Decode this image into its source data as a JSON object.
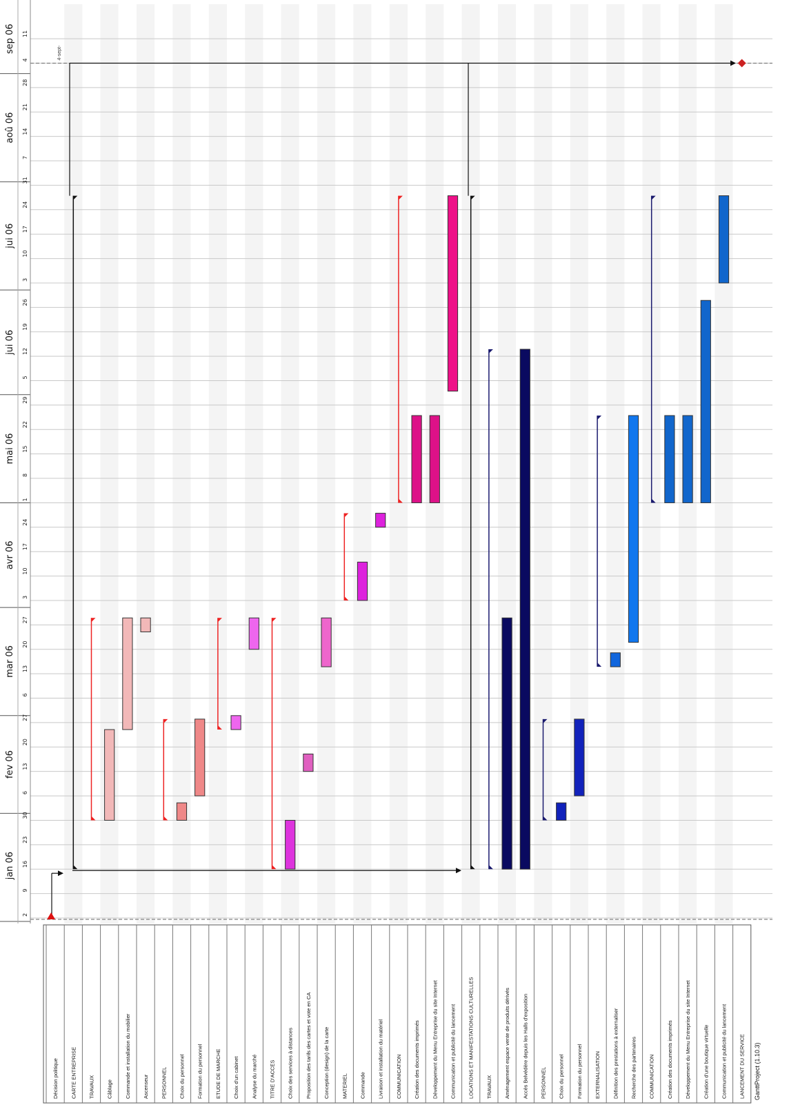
{
  "app": {
    "footer": "GanttProject (1.10.3)"
  },
  "chart_data": {
    "type": "gantt",
    "timeline": {
      "start": "2006-01-02",
      "end": "2006-09-13",
      "months": [
        {
          "label": "jan 06",
          "start": "2006-01-01"
        },
        {
          "label": "fev 06",
          "start": "2006-02-01"
        },
        {
          "label": "mar 06",
          "start": "2006-03-01"
        },
        {
          "label": "avr 06",
          "start": "2006-04-01"
        },
        {
          "label": "mai 06",
          "start": "2006-05-01"
        },
        {
          "label": "jui 06",
          "start": "2006-06-01"
        },
        {
          "label": "jui 06",
          "start": "2006-07-01"
        },
        {
          "label": "aoû 06",
          "start": "2006-08-01"
        },
        {
          "label": "sep 06",
          "start": "2006-09-01"
        }
      ],
      "weeks": [
        {
          "label": "2",
          "date": "2006-01-02"
        },
        {
          "label": "9",
          "date": "2006-01-09"
        },
        {
          "label": "16",
          "date": "2006-01-16"
        },
        {
          "label": "23",
          "date": "2006-01-23"
        },
        {
          "label": "30",
          "date": "2006-01-30"
        },
        {
          "label": "6",
          "date": "2006-02-06"
        },
        {
          "label": "13",
          "date": "2006-02-13"
        },
        {
          "label": "20",
          "date": "2006-02-20"
        },
        {
          "label": "27",
          "date": "2006-02-27"
        },
        {
          "label": "6",
          "date": "2006-03-06"
        },
        {
          "label": "13",
          "date": "2006-03-13"
        },
        {
          "label": "20",
          "date": "2006-03-20"
        },
        {
          "label": "27",
          "date": "2006-03-27"
        },
        {
          "label": "3",
          "date": "2006-04-03"
        },
        {
          "label": "10",
          "date": "2006-04-10"
        },
        {
          "label": "17",
          "date": "2006-04-17"
        },
        {
          "label": "24",
          "date": "2006-04-24"
        },
        {
          "label": "1",
          "date": "2006-05-01"
        },
        {
          "label": "8",
          "date": "2006-05-08"
        },
        {
          "label": "15",
          "date": "2006-05-15"
        },
        {
          "label": "22",
          "date": "2006-05-22"
        },
        {
          "label": "29",
          "date": "2006-05-29"
        },
        {
          "label": "5",
          "date": "2006-06-05"
        },
        {
          "label": "12",
          "date": "2006-06-12"
        },
        {
          "label": "19",
          "date": "2006-06-19"
        },
        {
          "label": "26",
          "date": "2006-06-26"
        },
        {
          "label": "3",
          "date": "2006-07-03"
        },
        {
          "label": "10",
          "date": "2006-07-10"
        },
        {
          "label": "17",
          "date": "2006-07-17"
        },
        {
          "label": "24",
          "date": "2006-07-24"
        },
        {
          "label": "31",
          "date": "2006-07-31"
        },
        {
          "label": "7",
          "date": "2006-08-07"
        },
        {
          "label": "14",
          "date": "2006-08-14"
        },
        {
          "label": "21",
          "date": "2006-08-21"
        },
        {
          "label": "28",
          "date": "2006-08-28"
        },
        {
          "label": "4",
          "date": "2006-09-04"
        },
        {
          "label": "11",
          "date": "2006-09-11"
        }
      ]
    },
    "today_label": "4-sept-",
    "tasks": [
      {
        "name": "Décision politique",
        "kind": "milestone",
        "start": "2006-01-02",
        "color": "#dd1111"
      },
      {
        "name": "CARTE ENTREPRISE",
        "kind": "summary",
        "start": "2006-01-16",
        "end": "2006-07-28",
        "color": "#111111"
      },
      {
        "name": "TRAVAUX",
        "kind": "summary",
        "start": "2006-01-30",
        "end": "2006-03-29",
        "color": "#ee2222"
      },
      {
        "name": "Câblage",
        "kind": "bar",
        "start": "2006-01-30",
        "end": "2006-02-25",
        "color": "#f2b8b8"
      },
      {
        "name": "Commande et installation du mobilier",
        "kind": "bar",
        "start": "2006-02-25",
        "end": "2006-03-29",
        "color": "#f2b8b8"
      },
      {
        "name": "Ascenseur",
        "kind": "bar",
        "start": "2006-03-25",
        "end": "2006-03-29",
        "color": "#f2b8b8"
      },
      {
        "name": "PERSONNEL",
        "kind": "summary",
        "start": "2006-01-30",
        "end": "2006-02-28",
        "color": "#ee2222"
      },
      {
        "name": "Choix du personnel",
        "kind": "bar",
        "start": "2006-01-30",
        "end": "2006-02-04",
        "color": "#ef8888"
      },
      {
        "name": "Formation du personnel",
        "kind": "bar",
        "start": "2006-02-06",
        "end": "2006-02-28",
        "color": "#ef8888"
      },
      {
        "name": "ETUDE DE MARCHE",
        "kind": "summary",
        "start": "2006-02-25",
        "end": "2006-03-29",
        "color": "#ee2222"
      },
      {
        "name": "Choix d'un cabinet",
        "kind": "bar",
        "start": "2006-02-25",
        "end": "2006-03-01",
        "color": "#ee66ee"
      },
      {
        "name": "Analyse du marché",
        "kind": "bar",
        "start": "2006-03-20",
        "end": "2006-03-29",
        "color": "#ee66ee"
      },
      {
        "name": "TITRE D'ACCES",
        "kind": "summary",
        "start": "2006-01-16",
        "end": "2006-03-29",
        "color": "#ee2222"
      },
      {
        "name": "Choix des services à distances",
        "kind": "bar",
        "start": "2006-01-16",
        "end": "2006-01-30",
        "color": "#dd33dd"
      },
      {
        "name": "Proposition des tarifs des cartes et vote en CA",
        "kind": "bar",
        "start": "2006-02-13",
        "end": "2006-02-18",
        "color": "#e060c0"
      },
      {
        "name": "Conception (design) de la carte",
        "kind": "bar",
        "start": "2006-03-15",
        "end": "2006-03-29",
        "color": "#ee66cc"
      },
      {
        "name": "MATERIEL",
        "kind": "summary",
        "start": "2006-04-03",
        "end": "2006-04-28",
        "color": "#ee2222"
      },
      {
        "name": "Commande",
        "kind": "bar",
        "start": "2006-04-03",
        "end": "2006-04-14",
        "color": "#dd22dd"
      },
      {
        "name": "Livraison et installation du matériel",
        "kind": "bar",
        "start": "2006-04-24",
        "end": "2006-04-28",
        "color": "#dd22dd"
      },
      {
        "name": "COMMUNICATION",
        "kind": "summary",
        "start": "2006-05-01",
        "end": "2006-07-28",
        "color": "#ee2222"
      },
      {
        "name": "Création des documents imprimés",
        "kind": "bar",
        "start": "2006-05-01",
        "end": "2006-05-26",
        "color": "#dd1188"
      },
      {
        "name": "Développement du Menu Entreprise du site Internet",
        "kind": "bar",
        "start": "2006-05-01",
        "end": "2006-05-26",
        "color": "#dd1188"
      },
      {
        "name": "Communication et publicité du lancement",
        "kind": "bar",
        "start": "2006-06-02",
        "end": "2006-07-28",
        "color": "#ee1188"
      },
      {
        "name": "LOCATIONS ET MANIFESTATIONS CULTURELLES",
        "kind": "summary",
        "start": "2006-01-16",
        "end": "2006-07-28",
        "color": "#111111"
      },
      {
        "name": "TRAVAUX",
        "kind": "summary",
        "start": "2006-01-16",
        "end": "2006-06-14",
        "color": "#1a1a6e"
      },
      {
        "name": "Aménagement espace vente de produits dérivés",
        "kind": "bar",
        "start": "2006-01-16",
        "end": "2006-03-29",
        "color": "#0a0a60"
      },
      {
        "name": "Accès Belvédère depuis les Halls d'exposition",
        "kind": "bar",
        "start": "2006-01-16",
        "end": "2006-06-14",
        "color": "#0a0a60"
      },
      {
        "name": "PERSONNEL",
        "kind": "summary",
        "start": "2006-01-30",
        "end": "2006-02-28",
        "color": "#1a1a6e"
      },
      {
        "name": "Choix du personnel",
        "kind": "bar",
        "start": "2006-01-30",
        "end": "2006-02-04",
        "color": "#1122bb"
      },
      {
        "name": "Formation du personnel",
        "kind": "bar",
        "start": "2006-02-06",
        "end": "2006-02-28",
        "color": "#1122bb"
      },
      {
        "name": "EXTERNALISATION",
        "kind": "summary",
        "start": "2006-03-15",
        "end": "2006-05-26",
        "color": "#1a1a6e"
      },
      {
        "name": "Définition des prestations à externaliser",
        "kind": "bar",
        "start": "2006-03-15",
        "end": "2006-03-19",
        "color": "#1166dd"
      },
      {
        "name": "Recherche des partenaires",
        "kind": "bar",
        "start": "2006-03-22",
        "end": "2006-05-26",
        "color": "#1177ee"
      },
      {
        "name": "COMMUNICATION",
        "kind": "summary",
        "start": "2006-05-01",
        "end": "2006-07-28",
        "color": "#1a1a6e"
      },
      {
        "name": "Création des documents imprimés",
        "kind": "bar",
        "start": "2006-05-01",
        "end": "2006-05-26",
        "color": "#1166cc"
      },
      {
        "name": "Développement du Menu Entreprise du site Internet",
        "kind": "bar",
        "start": "2006-05-01",
        "end": "2006-05-26",
        "color": "#1166cc"
      },
      {
        "name": "Création d'une boutique virtuelle",
        "kind": "bar",
        "start": "2006-05-01",
        "end": "2006-06-28",
        "color": "#1166cc"
      },
      {
        "name": "Communication et publicité du lancement",
        "kind": "bar",
        "start": "2006-07-03",
        "end": "2006-07-28",
        "color": "#1166cc"
      },
      {
        "name": "LANCEMENT DU SERVICE",
        "kind": "milestone",
        "start": "2006-09-04",
        "color": "#cc2222"
      }
    ]
  }
}
